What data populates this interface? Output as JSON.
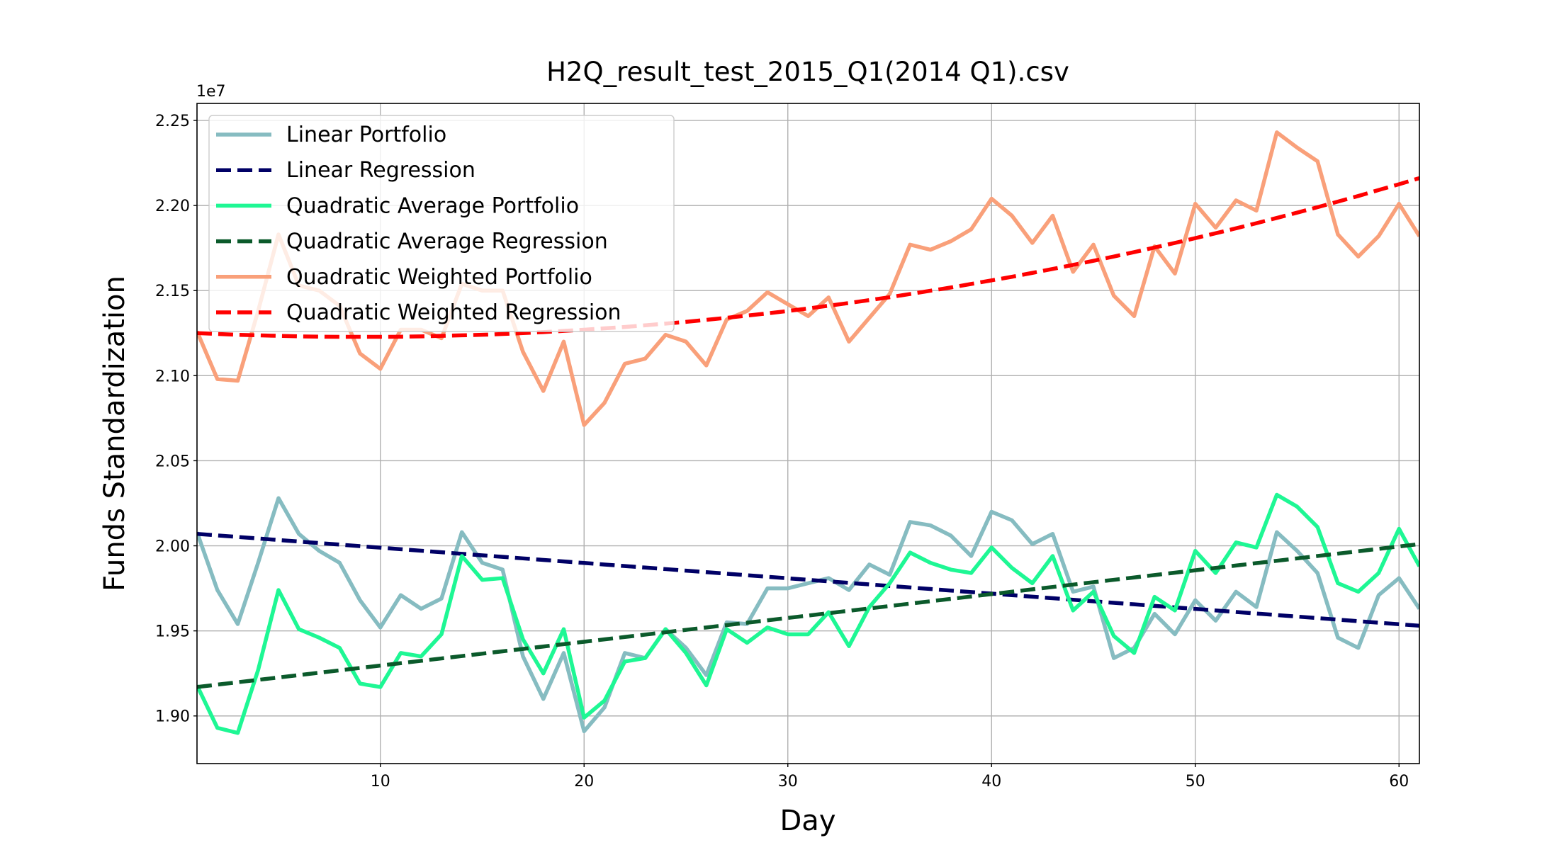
{
  "chart_data": {
    "type": "line",
    "title": "H2Q_result_test_2015_Q1(2014 Q1).csv",
    "xlabel": "Day",
    "ylabel": "Funds Standardization",
    "y_offset_label": "1e7",
    "grid": true,
    "legend": "upper left",
    "xlim": [
      1,
      61
    ],
    "ylim": [
      1.872,
      2.26
    ],
    "xticks": [
      10,
      20,
      30,
      40,
      50,
      60
    ],
    "yticks": [
      {
        "value": 1.9,
        "label": "1.90"
      },
      1.95,
      {
        "value": 2.0,
        "label": "2.00"
      },
      2.05,
      {
        "value": 2.1,
        "label": "2.10"
      },
      2.15,
      {
        "value": 2.2,
        "label": "2.20"
      },
      2.25
    ],
    "x": [
      1,
      2,
      3,
      4,
      5,
      6,
      7,
      8,
      9,
      10,
      11,
      12,
      13,
      14,
      15,
      16,
      17,
      18,
      19,
      20,
      21,
      22,
      23,
      24,
      25,
      26,
      27,
      28,
      29,
      30,
      31,
      32,
      33,
      34,
      35,
      36,
      37,
      38,
      39,
      40,
      41,
      42,
      43,
      44,
      45,
      46,
      47,
      48,
      49,
      50,
      51,
      52,
      53,
      54,
      55,
      56,
      57,
      58,
      59,
      60,
      61
    ],
    "series": [
      {
        "name": "Linear Portfolio",
        "color": "#86bcc1",
        "dashed": false,
        "values": [
          2.008,
          1.974,
          1.954,
          1.99,
          2.028,
          2.007,
          1.997,
          1.99,
          1.968,
          1.952,
          1.971,
          1.963,
          1.969,
          2.008,
          1.99,
          1.986,
          1.935,
          1.91,
          1.937,
          1.891,
          1.905,
          1.937,
          1.934,
          1.951,
          1.94,
          1.924,
          1.955,
          1.954,
          1.975,
          1.975,
          1.978,
          1.981,
          1.974,
          1.989,
          1.983,
          2.014,
          2.012,
          2.006,
          1.994,
          2.02,
          2.015,
          2.001,
          2.007,
          1.973,
          1.976,
          1.934,
          1.94,
          1.96,
          1.948,
          1.968,
          1.956,
          1.973,
          1.964,
          2.008,
          1.997,
          1.984,
          1.946,
          1.94,
          1.971,
          1.981,
          1.963
        ]
      },
      {
        "name": "Linear Regression",
        "color": "#000066",
        "dashed": true,
        "values": [
          2.007,
          2.0061,
          2.0052,
          2.0043,
          2.0034,
          2.0025,
          2.0016,
          2.0007,
          1.9998,
          1.9989,
          1.998,
          1.9971,
          1.9962,
          1.9953,
          1.9944,
          1.9935,
          1.9926,
          1.9917,
          1.9908,
          1.9899,
          1.989,
          1.9881,
          1.9872,
          1.9863,
          1.9854,
          1.9845,
          1.9836,
          1.9827,
          1.9818,
          1.9809,
          1.98,
          1.9791,
          1.9782,
          1.9773,
          1.9764,
          1.9755,
          1.9746,
          1.9737,
          1.9728,
          1.9719,
          1.971,
          1.9701,
          1.9692,
          1.9683,
          1.9674,
          1.9665,
          1.9656,
          1.9647,
          1.9638,
          1.9629,
          1.962,
          1.9611,
          1.9602,
          1.9593,
          1.9584,
          1.9575,
          1.9566,
          1.9557,
          1.9548,
          1.9539,
          1.953
        ]
      },
      {
        "name": "Quadratic Average Portfolio",
        "color": "#1ef794",
        "dashed": false,
        "values": [
          1.918,
          1.893,
          1.89,
          1.927,
          1.974,
          1.951,
          1.946,
          1.94,
          1.919,
          1.917,
          1.937,
          1.935,
          1.948,
          1.994,
          1.98,
          1.981,
          1.945,
          1.925,
          1.951,
          1.899,
          1.909,
          1.932,
          1.934,
          1.951,
          1.937,
          1.918,
          1.951,
          1.943,
          1.952,
          1.948,
          1.948,
          1.961,
          1.941,
          1.964,
          1.978,
          1.996,
          1.99,
          1.986,
          1.984,
          1.999,
          1.987,
          1.978,
          1.994,
          1.962,
          1.973,
          1.947,
          1.937,
          1.97,
          1.962,
          1.997,
          1.984,
          2.002,
          1.999,
          2.03,
          2.023,
          2.011,
          1.978,
          1.973,
          1.984,
          2.01,
          1.988
        ]
      },
      {
        "name": "Quadratic Average Regression",
        "color": "#0b5a2b",
        "dashed": true,
        "values": [
          1.917,
          1.9184,
          1.9198,
          1.9212,
          1.9226,
          1.924,
          1.9254,
          1.9268,
          1.9282,
          1.9296,
          1.931,
          1.9324,
          1.9338,
          1.9352,
          1.9366,
          1.938,
          1.9394,
          1.9408,
          1.9422,
          1.9436,
          1.945,
          1.9464,
          1.9478,
          1.9492,
          1.9506,
          1.952,
          1.9534,
          1.9548,
          1.9562,
          1.9576,
          1.959,
          1.9604,
          1.9618,
          1.9632,
          1.9646,
          1.966,
          1.9674,
          1.9688,
          1.9702,
          1.9716,
          1.973,
          1.9744,
          1.9758,
          1.9772,
          1.9786,
          1.98,
          1.9814,
          1.9828,
          1.9842,
          1.9856,
          1.987,
          1.9884,
          1.9898,
          1.9912,
          1.9926,
          1.994,
          1.9954,
          1.9968,
          1.9982,
          1.9996,
          2.001
        ]
      },
      {
        "name": "Quadratic Weighted Portfolio",
        "color": "#f9a07a",
        "dashed": false,
        "values": [
          2.126,
          2.098,
          2.097,
          2.138,
          2.183,
          2.153,
          2.15,
          2.141,
          2.113,
          2.104,
          2.127,
          2.127,
          2.122,
          2.154,
          2.15,
          2.15,
          2.114,
          2.091,
          2.12,
          2.071,
          2.084,
          2.107,
          2.11,
          2.124,
          2.12,
          2.106,
          2.133,
          2.138,
          2.149,
          2.142,
          2.135,
          2.146,
          2.12,
          2.134,
          2.148,
          2.177,
          2.174,
          2.179,
          2.186,
          2.204,
          2.194,
          2.178,
          2.194,
          2.161,
          2.177,
          2.147,
          2.135,
          2.176,
          2.16,
          2.201,
          2.187,
          2.203,
          2.197,
          2.243,
          2.234,
          2.226,
          2.183,
          2.17,
          2.182,
          2.201,
          2.182
        ]
      },
      {
        "name": "Quadratic Weighted Regression",
        "color": "#ff0000",
        "dashed": true,
        "values": [
          2.125,
          2.1245,
          2.124,
          2.1237,
          2.1234,
          2.1231,
          2.1229,
          2.1228,
          2.1228,
          2.1228,
          2.1229,
          2.1231,
          2.1234,
          2.1237,
          2.124,
          2.1245,
          2.125,
          2.1256,
          2.1263,
          2.127,
          2.1278,
          2.1286,
          2.1296,
          2.1306,
          2.1316,
          2.1328,
          2.134,
          2.1353,
          2.1366,
          2.138,
          2.1395,
          2.1411,
          2.1427,
          2.1444,
          2.1461,
          2.148,
          2.1499,
          2.1518,
          2.1539,
          2.156,
          2.1581,
          2.1604,
          2.1627,
          2.1651,
          2.1675,
          2.17,
          2.1726,
          2.1753,
          2.178,
          2.1808,
          2.1837,
          2.1866,
          2.1896,
          2.1927,
          2.1958,
          2.199,
          2.2023,
          2.2056,
          2.2091,
          2.2125,
          2.2161
        ]
      }
    ]
  }
}
